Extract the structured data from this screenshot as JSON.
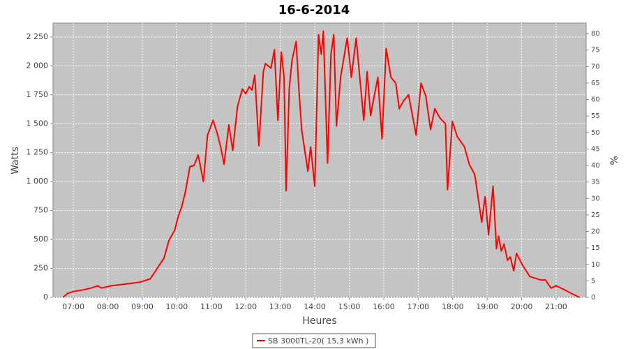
{
  "chart_data": {
    "type": "line",
    "title": "16-6-2014",
    "x_label": "Heures",
    "y_label": "Watts",
    "y2_label": "%",
    "xlim": [
      6.41,
      21.87
    ],
    "ylim": [
      0,
      2370
    ],
    "y2lim": [
      0,
      83.2
    ],
    "xticks": [
      {
        "value": 7,
        "label": "07:00"
      },
      {
        "value": 8,
        "label": "08:00"
      },
      {
        "value": 9,
        "label": "09:00"
      },
      {
        "value": 10,
        "label": "10:00"
      },
      {
        "value": 11,
        "label": "11:00"
      },
      {
        "value": 12,
        "label": "12:00"
      },
      {
        "value": 13,
        "label": "13:00"
      },
      {
        "value": 14,
        "label": "14:00"
      },
      {
        "value": 15,
        "label": "15:00"
      },
      {
        "value": 16,
        "label": "16:00"
      },
      {
        "value": 17,
        "label": "17:00"
      },
      {
        "value": 18,
        "label": "18:00"
      },
      {
        "value": 19,
        "label": "19:00"
      },
      {
        "value": 20,
        "label": "20:00"
      },
      {
        "value": 21,
        "label": "21:00"
      }
    ],
    "yticks": [
      0,
      250,
      500,
      750,
      {
        "value": 1000,
        "label": "1 000"
      },
      {
        "value": 1250,
        "label": "1 250"
      },
      {
        "value": 1500,
        "label": "1 500"
      },
      {
        "value": 1750,
        "label": "1 750"
      },
      {
        "value": 2000,
        "label": "2 000"
      },
      {
        "value": 2250,
        "label": "2 250"
      }
    ],
    "y2ticks": [
      0,
      5,
      10,
      15,
      20,
      25,
      30,
      35,
      40,
      45,
      50,
      55,
      60,
      65,
      70,
      75,
      80
    ],
    "grid": true,
    "legend": "bottom",
    "x": [
      6.7,
      6.84,
      7.0,
      7.3,
      7.51,
      7.71,
      7.81,
      8.11,
      8.52,
      8.92,
      9.23,
      9.43,
      9.63,
      9.77,
      9.94,
      10.04,
      10.14,
      10.24,
      10.38,
      10.5,
      10.62,
      10.77,
      10.89,
      11.05,
      11.17,
      11.27,
      11.37,
      11.51,
      11.62,
      11.76,
      11.9,
      12.0,
      12.1,
      12.18,
      12.26,
      12.38,
      12.51,
      12.57,
      12.73,
      12.83,
      12.93,
      13.03,
      13.11,
      13.17,
      13.26,
      13.34,
      13.46,
      13.54,
      13.62,
      13.8,
      13.88,
      14.0,
      14.11,
      14.19,
      14.25,
      14.37,
      14.47,
      14.55,
      14.63,
      14.75,
      14.94,
      15.0,
      15.06,
      15.2,
      15.42,
      15.52,
      15.62,
      15.7,
      15.83,
      15.95,
      16.07,
      16.21,
      16.35,
      16.45,
      16.58,
      16.72,
      16.94,
      17.08,
      17.22,
      17.36,
      17.48,
      17.63,
      17.79,
      17.85,
      17.99,
      18.13,
      18.34,
      18.48,
      18.64,
      18.84,
      18.94,
      19.04,
      19.17,
      19.27,
      19.33,
      19.41,
      19.49,
      19.59,
      19.67,
      19.77,
      19.85,
      20.04,
      20.24,
      20.55,
      20.69,
      20.85,
      21.0,
      21.21,
      21.47,
      21.68
    ],
    "series": [
      {
        "name": "SB 3000TL-20( 15,3 kWh )",
        "color": "#ff0000",
        "values": [
          0,
          35,
          50,
          65,
          80,
          100,
          80,
          100,
          115,
          130,
          160,
          250,
          340,
          490,
          580,
          700,
          780,
          900,
          1130,
          1140,
          1230,
          1000,
          1400,
          1530,
          1420,
          1300,
          1150,
          1490,
          1270,
          1650,
          1800,
          1760,
          1820,
          1790,
          1920,
          1310,
          1950,
          2020,
          1980,
          2140,
          1530,
          2120,
          1900,
          920,
          1800,
          2050,
          2210,
          1800,
          1450,
          1090,
          1300,
          960,
          2270,
          2100,
          2300,
          1160,
          2100,
          2270,
          1480,
          1900,
          2240,
          2080,
          1900,
          2240,
          1530,
          1950,
          1570,
          1700,
          1900,
          1370,
          2150,
          1900,
          1850,
          1630,
          1700,
          1750,
          1400,
          1850,
          1740,
          1450,
          1630,
          1550,
          1500,
          930,
          1520,
          1390,
          1300,
          1150,
          1060,
          650,
          870,
          540,
          960,
          420,
          530,
          400,
          460,
          320,
          350,
          230,
          380,
          270,
          180,
          150,
          150,
          80,
          100,
          70,
          30,
          0
        ]
      }
    ]
  }
}
